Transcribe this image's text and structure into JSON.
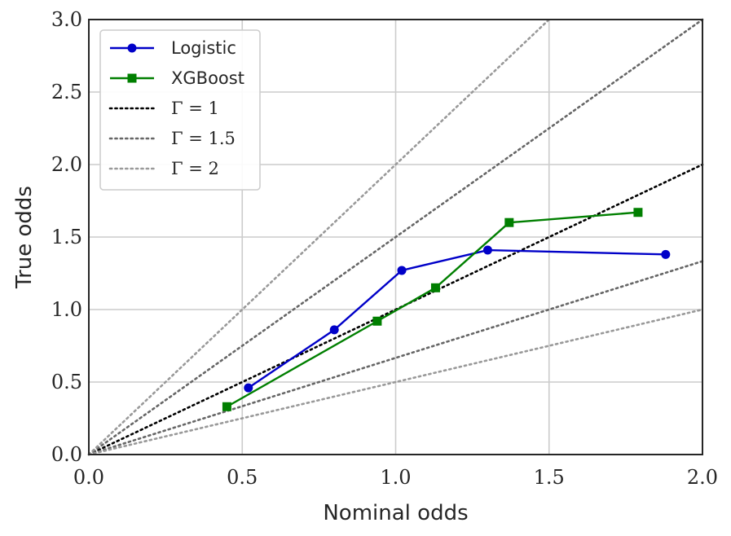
{
  "chart_data": {
    "type": "line",
    "xlabel": "Nominal odds",
    "ylabel": "True odds",
    "xlim": [
      0,
      2
    ],
    "ylim": [
      0,
      3
    ],
    "x_ticks": [
      "0.0",
      "0.5",
      "1.0",
      "1.5",
      "2.0"
    ],
    "y_ticks": [
      "0.0",
      "0.5",
      "1.0",
      "1.5",
      "2.0",
      "2.5",
      "3.0"
    ],
    "grid": true,
    "legend_position": "top-left",
    "series": [
      {
        "name": "Logistic",
        "color": "#0000c8",
        "marker": "circle",
        "x": [
          0.52,
          0.8,
          1.02,
          1.3,
          1.88
        ],
        "y": [
          0.46,
          0.86,
          1.27,
          1.41,
          1.38
        ]
      },
      {
        "name": "XGBoost",
        "color": "#007f00",
        "marker": "square",
        "x": [
          0.45,
          0.94,
          1.13,
          1.37,
          1.79
        ],
        "y": [
          0.33,
          0.92,
          1.15,
          1.6,
          1.67
        ]
      }
    ],
    "reference_lines": [
      {
        "name": "Γ = 1",
        "color": "#000000",
        "style": "dotted",
        "slopes": [
          1
        ]
      },
      {
        "name": "Γ = 1.5",
        "color": "#666666",
        "style": "dotted",
        "slopes": [
          1.5,
          0.6667
        ]
      },
      {
        "name": "Γ = 2",
        "color": "#999999",
        "style": "dotted",
        "slopes": [
          2,
          0.5
        ]
      }
    ]
  }
}
